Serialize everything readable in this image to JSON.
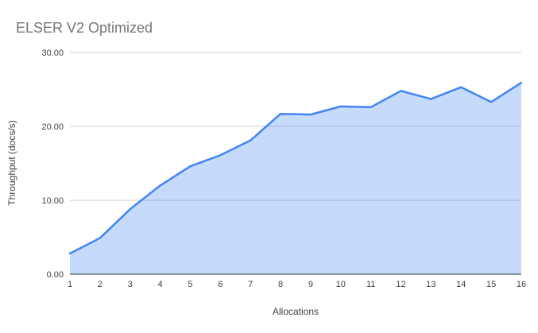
{
  "chart_data": {
    "type": "area",
    "title": "ELSER V2 Optimized",
    "xlabel": "Allocations",
    "ylabel": "Throughput (docs/s)",
    "categories": [
      "1",
      "2",
      "3",
      "4",
      "5",
      "6",
      "7",
      "8",
      "9",
      "10",
      "11",
      "12",
      "13",
      "14",
      "15",
      "16"
    ],
    "series": [
      {
        "name": "Throughput (docs/s)",
        "values": [
          2.8,
          4.9,
          8.8,
          12.0,
          14.6,
          16.1,
          18.1,
          21.7,
          21.6,
          22.7,
          22.6,
          24.8,
          23.7,
          25.3,
          23.3,
          25.9
        ]
      }
    ],
    "ylim": [
      0,
      30
    ],
    "yticks": [
      0,
      10,
      20,
      30
    ],
    "ytick_labels": [
      "0.00",
      "10.00",
      "20.00",
      "30.00"
    ],
    "grid": true,
    "legend_position": "none",
    "colors": {
      "line": "#4285f4",
      "fill_rgba": "rgba(66,133,244,0.30)",
      "grid": "#cccccc",
      "axis_line": "#333333",
      "title_text": "#757575",
      "tick_text": "#424242"
    }
  }
}
